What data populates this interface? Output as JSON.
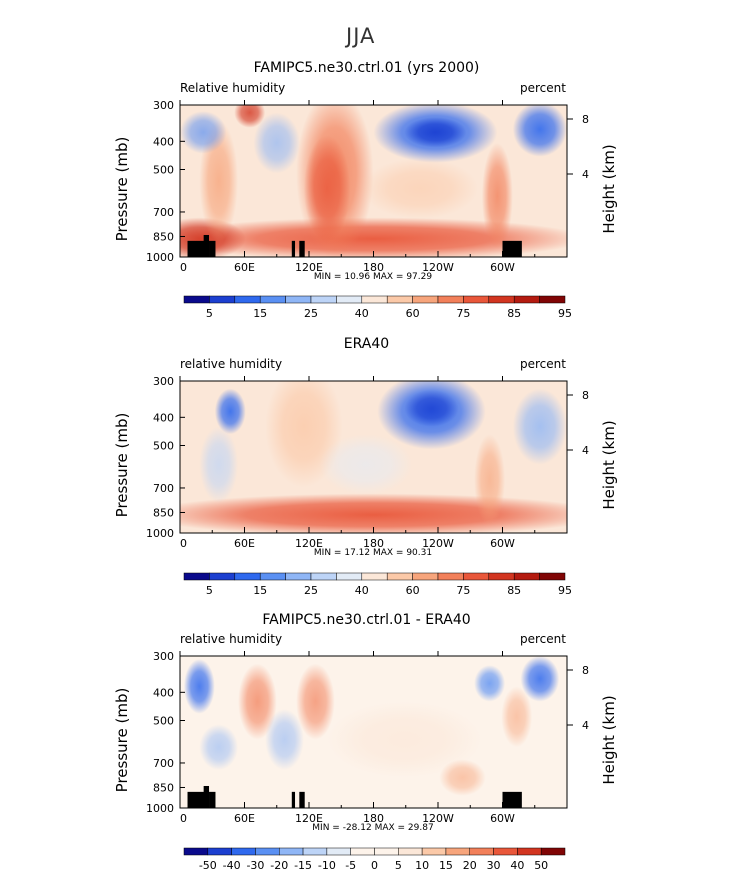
{
  "season_title": "JJA",
  "chart_data": [
    {
      "type": "heatmap",
      "title": "FAMIPC5.ne30.ctrl.01 (yrs 2000)",
      "left_label": "Relative humidity",
      "right_label": "percent",
      "xlabel": "",
      "ylabel": "Pressure (mb)",
      "y2label": "Height (km)",
      "x_ticks": [
        "0",
        "60E",
        "120E",
        "180",
        "120W",
        "60W"
      ],
      "y_ticks": [
        "300",
        "400",
        "500",
        "700",
        "850",
        "1000"
      ],
      "y2_ticks": [
        "8",
        "4"
      ],
      "stats": "MIN =   10.96   MAX =   97.29",
      "colorbar_labels": [
        "5",
        "15",
        "25",
        "40",
        "60",
        "75",
        "85",
        "95"
      ],
      "topography": true
    },
    {
      "type": "heatmap",
      "title": "ERA40",
      "left_label": "relative humidity",
      "right_label": "percent",
      "xlabel": "",
      "ylabel": "Pressure (mb)",
      "y2label": "Height (km)",
      "x_ticks": [
        "0",
        "60E",
        "120E",
        "180",
        "120W",
        "60W"
      ],
      "y_ticks": [
        "300",
        "400",
        "500",
        "700",
        "850",
        "1000"
      ],
      "y2_ticks": [
        "8",
        "4"
      ],
      "stats": "MIN =   17.12   MAX =   90.31",
      "colorbar_labels": [
        "5",
        "15",
        "25",
        "40",
        "60",
        "75",
        "85",
        "95"
      ],
      "topography": false
    },
    {
      "type": "heatmap",
      "title": "FAMIPC5.ne30.ctrl.01 - ERA40",
      "left_label": "relative humidity",
      "right_label": "percent",
      "xlabel": "",
      "ylabel": "Pressure (mb)",
      "y2label": "Height (km)",
      "x_ticks": [
        "0",
        "60E",
        "120E",
        "180",
        "120W",
        "60W"
      ],
      "y_ticks": [
        "300",
        "400",
        "500",
        "700",
        "850",
        "1000"
      ],
      "y2_ticks": [
        "8",
        "4"
      ],
      "stats": "MIN = -28.12   MAX =   29.87",
      "colorbar_labels": [
        "-50",
        "-40",
        "-30",
        "-20",
        "-15",
        "-10",
        "-5",
        "0",
        "5",
        "10",
        "15",
        "20",
        "30",
        "40",
        "50"
      ],
      "topography": true
    }
  ],
  "colors": {
    "abs_scale": [
      "#0a0a8c",
      "#1c3fd0",
      "#2f69ee",
      "#5a90f3",
      "#8fb6f6",
      "#bdd4f7",
      "#e2ebf6",
      "#fbe7d8",
      "#fbc9a8",
      "#f7a57c",
      "#f2805a",
      "#e9573a",
      "#d23520",
      "#b41b10",
      "#800505"
    ],
    "diff_scale": [
      "#0a0a8c",
      "#1c3fd0",
      "#2f69ee",
      "#5a90f3",
      "#8fb6f6",
      "#bdd4f7",
      "#e2ebf6",
      "#fdf3ea",
      "#fdf3ea",
      "#fbe7d8",
      "#fbc9a8",
      "#f7a57c",
      "#f2805a",
      "#e9573a",
      "#d23520",
      "#800505"
    ],
    "topography": "#000000"
  }
}
